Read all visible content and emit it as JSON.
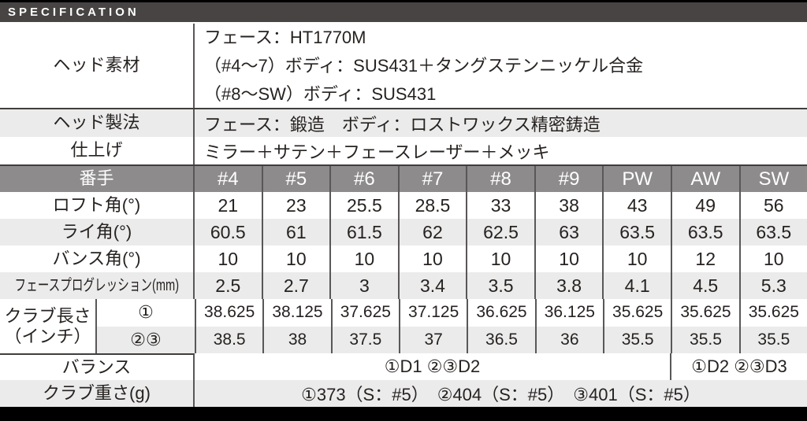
{
  "title_bar": {
    "label": "SPECIFICATION"
  },
  "colors": {
    "black": "#000000",
    "title_bar_bg": "#474443",
    "column_header_bg": "#8d8b8b",
    "row_alt_bg": "#ebebeb",
    "border": "#595757",
    "section_border": "#403e3d",
    "text": "#262220",
    "header_text": "#ffffff"
  },
  "info_rows": [
    {
      "label": "ヘッド素材",
      "lines": [
        "フェース：HT1770M",
        "（#4～7）ボディ：SUS431＋タングステンニッケル合金",
        "（#8～SW）ボディ：SUS431"
      ]
    },
    {
      "label": "ヘッド製法",
      "lines": [
        "フェース：鍛造　ボディ：ロストワックス精密鋳造"
      ]
    },
    {
      "label": "仕上げ",
      "lines": [
        "ミラー＋サテン＋フェースレーザー＋メッキ"
      ]
    }
  ],
  "spec_table": {
    "header": {
      "label": "番手",
      "columns": [
        "#4",
        "#5",
        "#6",
        "#7",
        "#8",
        "#9",
        "PW",
        "AW",
        "SW"
      ]
    },
    "rows": [
      {
        "label": "ロフト角(°)",
        "condensed": false,
        "values": [
          "21",
          "23",
          "25.5",
          "28.5",
          "33",
          "38",
          "43",
          "49",
          "56"
        ]
      },
      {
        "label": "ライ角(°)",
        "condensed": false,
        "values": [
          "60.5",
          "61",
          "61.5",
          "62",
          "62.5",
          "63",
          "63.5",
          "63.5",
          "63.5"
        ]
      },
      {
        "label": "バンス角(°)",
        "condensed": false,
        "values": [
          "10",
          "10",
          "10",
          "10",
          "10",
          "10",
          "10",
          "12",
          "10"
        ]
      },
      {
        "label": "フェースプログレッション(mm)",
        "condensed": true,
        "values": [
          "2.5",
          "2.7",
          "3",
          "3.4",
          "3.5",
          "3.8",
          "4.1",
          "4.5",
          "5.3"
        ]
      }
    ],
    "length_group": {
      "label_lines": [
        "クラブ長さ",
        "（インチ）"
      ],
      "sub_rows": [
        {
          "sub_label": "①",
          "values": [
            "38.625",
            "38.125",
            "37.625",
            "37.125",
            "36.625",
            "36.125",
            "35.625",
            "35.625",
            "35.625"
          ]
        },
        {
          "sub_label": "②③",
          "values": [
            "38.5",
            "38",
            "37.5",
            "37",
            "36.5",
            "36",
            "35.5",
            "35.5",
            "35.5"
          ]
        }
      ]
    },
    "balance_row": {
      "label": "バランス",
      "left_value": "①D1 ②③D2",
      "right_value": "①D2 ②③D3"
    },
    "weight_row": {
      "label": "クラブ重さ(g)",
      "value": "①373（S：#5）　②404（S：#5）　③401（S：#5）"
    }
  }
}
